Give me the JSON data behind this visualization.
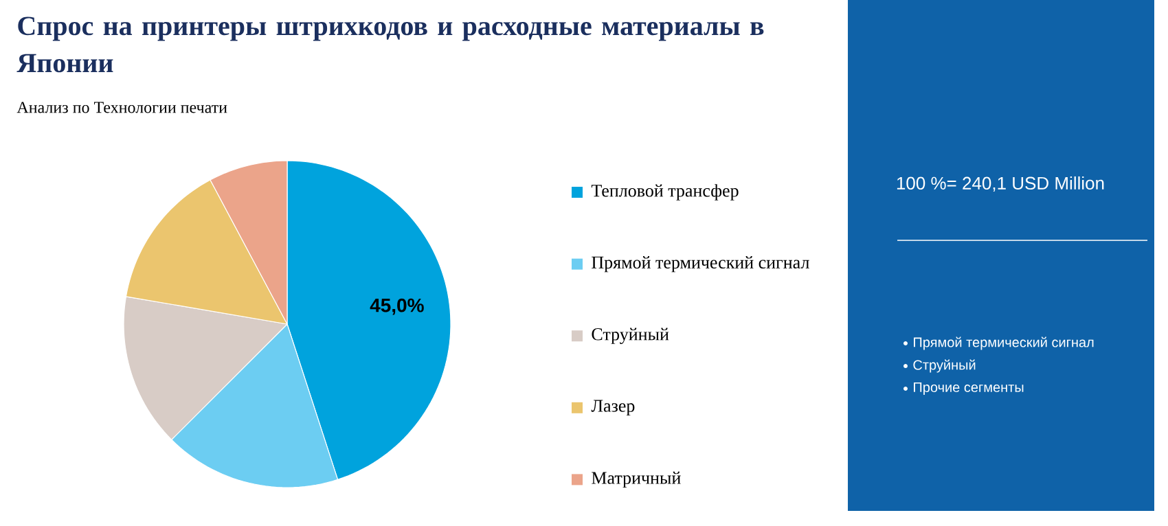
{
  "chart_data": {
    "type": "pie",
    "title": "Спрос на принтеры штрихкодов и расходные материалы в Японии",
    "subtitle": "Анализ по Технологии печати",
    "categories": [
      "Тепловой трансфер",
      "Прямой термический сигнал",
      "Струйный",
      "Лазер",
      "Матричный"
    ],
    "values": [
      45.0,
      17.5,
      15.2,
      14.5,
      7.8
    ],
    "colors": [
      "#00a3dd",
      "#6ccdf2",
      "#d8ccc6",
      "#ebc56e",
      "#eba48a"
    ],
    "value_labels": [
      "45,0%",
      null,
      null,
      null,
      null
    ],
    "legend": "right",
    "annotations": [
      "100 %= 240,1 USD Million",
      "Прямой термический сигнал",
      "Струйный",
      "Прочие сегменты"
    ]
  }
}
